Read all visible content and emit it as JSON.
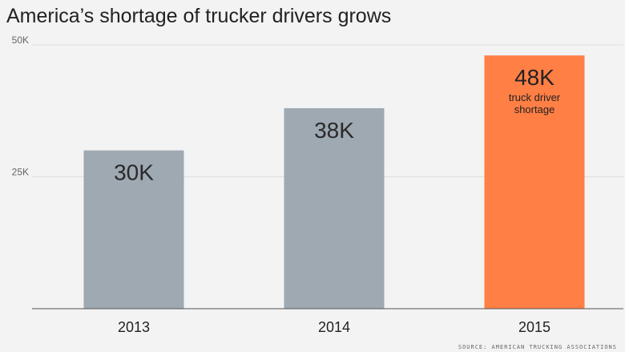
{
  "chart_data": {
    "type": "bar",
    "title": "America’s shortage of trucker drivers grows",
    "categories": [
      "2013",
      "2014",
      "2015"
    ],
    "values": [
      30,
      38,
      48
    ],
    "value_labels": [
      "30K",
      "38K",
      "48K"
    ],
    "highlight_index": 2,
    "annotation": "truck driver shortage",
    "y_ticks": [
      {
        "value": 25,
        "label": "25K"
      },
      {
        "value": 50,
        "label": "50K"
      }
    ],
    "ylim": [
      0,
      50
    ],
    "xlabel": "",
    "ylabel": "",
    "grid": true,
    "source": "SOURCE: AMERICAN TRUCKING ASSOCIATIONS",
    "colors": {
      "bar": "#9ea9b2",
      "highlight": "#ff7f45",
      "grid": "#dddddd",
      "axis": "#555555",
      "label": "#2a2a2a",
      "highlight_label": "#222222"
    }
  }
}
